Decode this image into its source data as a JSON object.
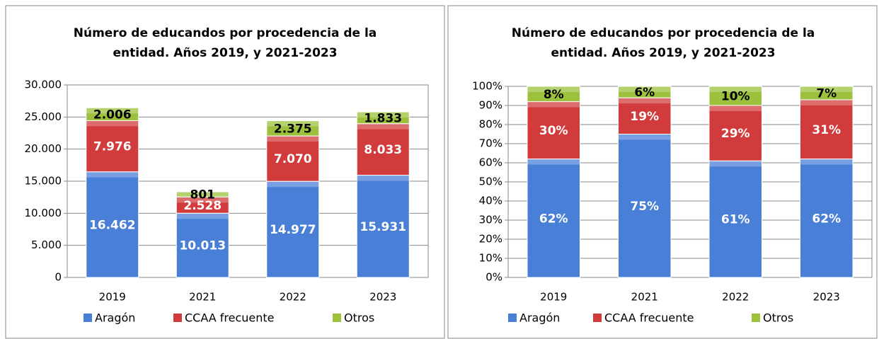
{
  "chart_data": [
    {
      "type": "stacked_bar",
      "title": [
        "Número de educandos por procedencia de la",
        "entidad. Años 2019, y 2021-2023"
      ],
      "categories": [
        "2019",
        "2021",
        "2022",
        "2023"
      ],
      "series": [
        {
          "name": "Aragón",
          "color": "#4a7fd8",
          "values": [
            16462,
            10013,
            14977,
            15931
          ],
          "value_labels": [
            "16.462",
            "10.013",
            "14.977",
            "15.931"
          ]
        },
        {
          "name": "CCAA frecuente",
          "color": "#d23b3b",
          "values": [
            7976,
            2528,
            7070,
            8033
          ],
          "value_labels": [
            "7.976",
            "2.528",
            "7.070",
            "8.033"
          ]
        },
        {
          "name": "Otros",
          "color": "#9cc23d",
          "values": [
            2006,
            801,
            2375,
            1833
          ],
          "value_labels": [
            "2.006",
            "801",
            "2.375",
            "1.833"
          ]
        }
      ],
      "ylim": [
        0,
        30000
      ],
      "yticks": [
        0,
        {
          "value": 5000,
          "label": "5.000"
        },
        {
          "value": 10000,
          "label": "10.000"
        },
        {
          "value": 15000,
          "label": "15.000"
        },
        {
          "value": 20000,
          "label": "20.000"
        },
        {
          "value": 25000,
          "label": "25.000"
        },
        {
          "value": 30000,
          "label": "30.000"
        }
      ],
      "grid": true,
      "legend": "bottom"
    },
    {
      "type": "stacked_bar",
      "title": [
        "Número de educandos por procedencia de la",
        "entidad. Años 2019, y 2021-2023"
      ],
      "categories": [
        "2019",
        "2021",
        "2022",
        "2023"
      ],
      "series": [
        {
          "name": "Aragón",
          "color": "#4a7fd8",
          "values": [
            62,
            75,
            61,
            62
          ],
          "value_labels": [
            "62%",
            "75%",
            "61%",
            "62%"
          ]
        },
        {
          "name": "CCAA frecuente",
          "color": "#d23b3b",
          "values": [
            30,
            19,
            29,
            31
          ],
          "value_labels": [
            "30%",
            "19%",
            "29%",
            "31%"
          ]
        },
        {
          "name": "Otros",
          "color": "#9cc23d",
          "values": [
            8,
            6,
            10,
            7
          ],
          "value_labels": [
            "8%",
            "6%",
            "10%",
            "7%"
          ]
        }
      ],
      "ylim": [
        0,
        100
      ],
      "yticks": [
        {
          "value": 0,
          "label": "0%"
        },
        {
          "value": 10,
          "label": "10%"
        },
        {
          "value": 20,
          "label": "20%"
        },
        {
          "value": 30,
          "label": "30%"
        },
        {
          "value": 40,
          "label": "40%"
        },
        {
          "value": 50,
          "label": "50%"
        },
        {
          "value": 60,
          "label": "60%"
        },
        {
          "value": 70,
          "label": "70%"
        },
        {
          "value": 80,
          "label": "80%"
        },
        {
          "value": 90,
          "label": "90%"
        },
        {
          "value": 100,
          "label": "100%"
        }
      ],
      "grid": true,
      "legend": "bottom"
    }
  ]
}
